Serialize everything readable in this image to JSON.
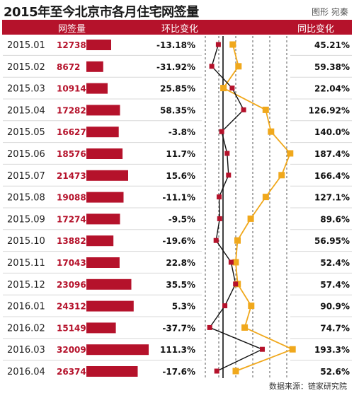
{
  "title": "2015年至今北京市各月住宅网签量",
  "credit": "图形 宛秦",
  "source": "数据来源：链家研究院",
  "headers": {
    "volume": "网签量",
    "mom": "环比变化",
    "yoy": "同比变化"
  },
  "colors": {
    "header_bg": "#b5122b",
    "bar": "#b5122b",
    "volume_text": "#b5122b",
    "mom_line": "#111111",
    "mom_marker": "#b5122b",
    "yoy_line": "#f0a81c",
    "yoy_marker": "#f0a81c"
  },
  "chart_data": {
    "type": "table",
    "categories": [
      "2015.01",
      "2015.02",
      "2015.03",
      "2015.04",
      "2015.05",
      "2015.06",
      "2015.07",
      "2015.08",
      "2015.09",
      "2015.10",
      "2015.11",
      "2015.12",
      "2016.01",
      "2016.02",
      "2016.03",
      "2016.04"
    ],
    "series": [
      {
        "name": "网签量",
        "values": [
          12738,
          8672,
          10914,
          17282,
          16627,
          18576,
          21473,
          19088,
          17274,
          13882,
          17043,
          23096,
          24312,
          15149,
          32009,
          26374
        ],
        "labels": [
          "12738",
          "8672",
          "10914",
          "17282",
          "16627",
          "18576",
          "21473",
          "19088",
          "17274",
          "13882",
          "17043",
          "23096",
          "24312",
          "15149",
          "32009",
          "26374"
        ]
      },
      {
        "name": "环比变化",
        "values": [
          -13.18,
          -31.92,
          25.85,
          58.35,
          -3.8,
          11.7,
          15.6,
          -11.1,
          -9.5,
          -19.6,
          22.8,
          35.5,
          5.3,
          -37.7,
          111.3,
          -17.6
        ],
        "labels": [
          "-13.18%",
          "-31.92%",
          "25.85%",
          "58.35%",
          "-3.8%",
          "11.7%",
          "15.6%",
          "-11.1%",
          "-9.5%",
          "-19.6%",
          "22.8%",
          "35.5%",
          "5.3%",
          "-37.7%",
          "111.3%",
          "-17.6%"
        ]
      },
      {
        "name": "同比变化",
        "values": [
          45.21,
          59.38,
          22.04,
          126.92,
          140.0,
          187.4,
          166.4,
          127.1,
          89.6,
          56.95,
          52.4,
          57.4,
          90.9,
          74.7,
          193.3,
          52.6
        ],
        "labels": [
          "45.21%",
          "59.38%",
          "22.04%",
          "126.92%",
          "140.0%",
          "187.4%",
          "166.4%",
          "127.1%",
          "89.6%",
          "56.95%",
          "52.4%",
          "57.4%",
          "90.9%",
          "74.7%",
          "193.3%",
          "52.6%"
        ]
      }
    ],
    "grid": true
  }
}
